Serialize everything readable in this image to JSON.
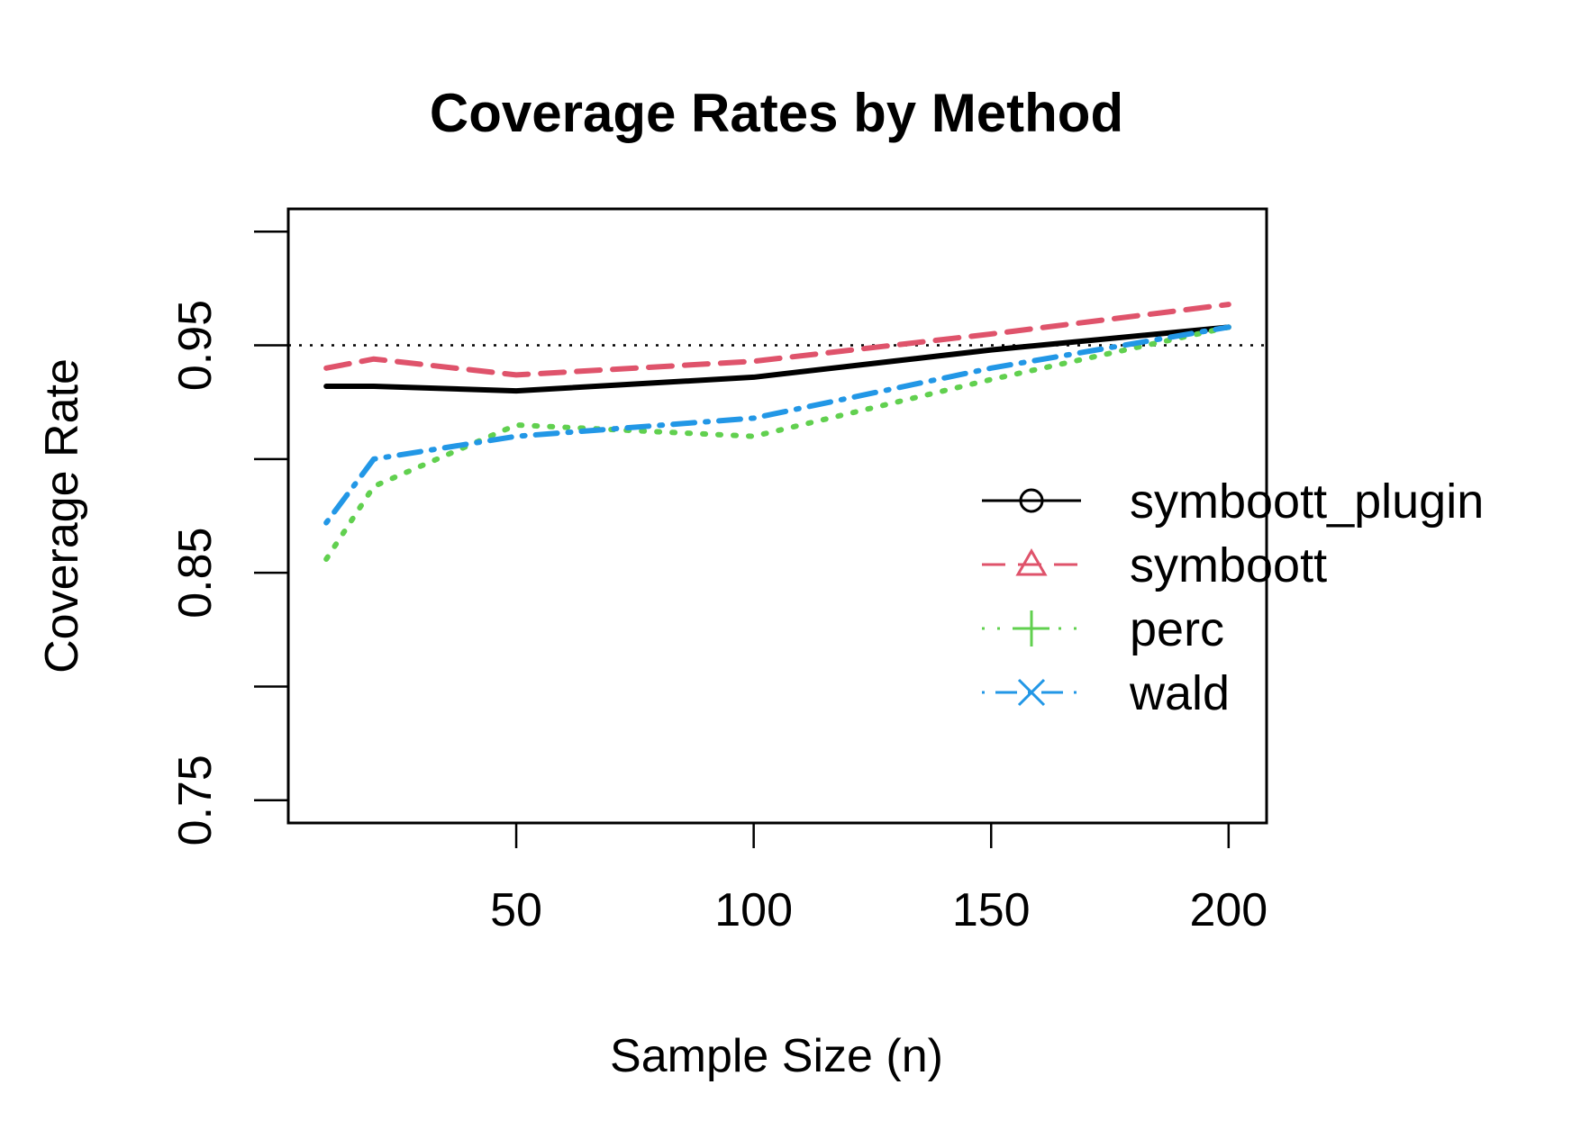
{
  "chart_data": {
    "type": "line",
    "title": "Coverage Rates by Method",
    "xlabel": "Sample Size (n)",
    "ylabel": "Coverage Rate",
    "x": [
      10,
      20,
      50,
      100,
      150,
      200
    ],
    "xlim": [
      2,
      208
    ],
    "ylim": [
      0.74,
      1.01
    ],
    "x_ticks": [
      50,
      100,
      150,
      200
    ],
    "x_tick_labels": [
      "50",
      "100",
      "150",
      "200"
    ],
    "y_ticks": [
      0.75,
      0.8,
      0.85,
      0.9,
      0.95,
      1.0
    ],
    "y_tick_labels": [
      "0.75",
      "",
      "0.85",
      "",
      "0.95",
      ""
    ],
    "reference_line": {
      "y": 0.95,
      "style": "dotted"
    },
    "series": [
      {
        "name": "symboott_plugin",
        "values": [
          0.932,
          0.932,
          0.93,
          0.936,
          0.948,
          0.958
        ],
        "color": "#000000",
        "dash": "solid",
        "marker": "circle"
      },
      {
        "name": "symboott",
        "values": [
          0.94,
          0.944,
          0.937,
          0.943,
          0.955,
          0.968
        ],
        "color": "#DF536B",
        "dash": "dashed",
        "marker": "triangle"
      },
      {
        "name": "perc",
        "values": [
          0.856,
          0.888,
          0.915,
          0.91,
          0.935,
          0.958
        ],
        "color": "#61D04F",
        "dash": "dotted",
        "marker": "plus"
      },
      {
        "name": "wald",
        "values": [
          0.872,
          0.9,
          0.91,
          0.918,
          0.94,
          0.958
        ],
        "color": "#2297E6",
        "dash": "dotdash",
        "marker": "cross"
      }
    ],
    "grid": false,
    "legend": {
      "position": "right"
    }
  }
}
